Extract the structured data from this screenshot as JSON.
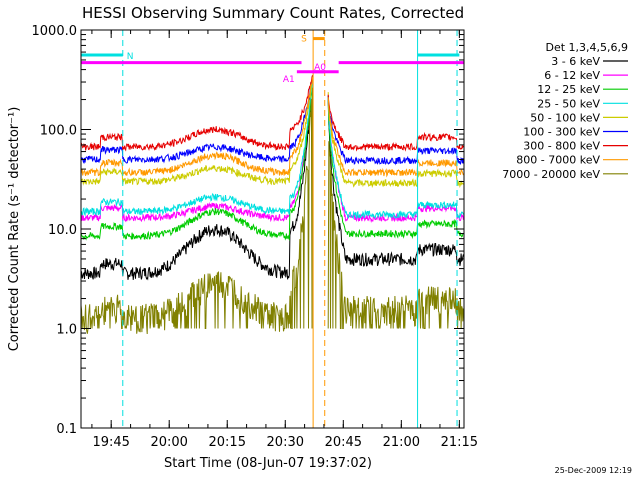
{
  "chart_data": {
    "type": "line",
    "title": "HESSI Observing Summary Count Rates, Corrected",
    "xlabel": "Start Time (08-Jun-07 19:37:02)",
    "ylabel": "Corrected Count Rate (s⁻¹ detector⁻¹)",
    "yscale": "log",
    "ylim": [
      0.1,
      1000
    ],
    "xlim_minutes": [
      19.62,
      21.27
    ],
    "x_ticks": [
      {
        "t": 19.75,
        "label": "19:45"
      },
      {
        "t": 20.0,
        "label": "20:00"
      },
      {
        "t": 20.25,
        "label": "20:15"
      },
      {
        "t": 20.5,
        "label": "20:30"
      },
      {
        "t": 20.75,
        "label": "20:45"
      },
      {
        "t": 21.0,
        "label": "21:00"
      },
      {
        "t": 21.25,
        "label": "21:15"
      }
    ],
    "y_ticks": [
      {
        "v": 0.1,
        "label": "0.1"
      },
      {
        "v": 1,
        "label": "1.0"
      },
      {
        "v": 10,
        "label": "10.0"
      },
      {
        "v": 100,
        "label": "100.0"
      },
      {
        "v": 1000,
        "label": "1000.0"
      }
    ],
    "legend": {
      "header": "Det 1,3,4,5,6,9",
      "position": "right"
    },
    "series": [
      {
        "name": "3 - 6 keV",
        "color": "#000000",
        "baseline": 3.6,
        "hump": 10,
        "peak": 380,
        "post": 5
      },
      {
        "name": "6 - 12 keV",
        "color": "#ff00ff",
        "baseline": 13,
        "hump": 17,
        "peak": 380,
        "post": 13
      },
      {
        "name": "12 - 25 keV",
        "color": "#00cc00",
        "baseline": 8.5,
        "hump": 15,
        "peak": 380,
        "post": 9
      },
      {
        "name": "25 - 50 keV",
        "color": "#00e0e0",
        "baseline": 15,
        "hump": 21,
        "peak": 380,
        "post": 14
      },
      {
        "name": "50 - 100 keV",
        "color": "#cccc00",
        "baseline": 30,
        "hump": 41,
        "peak": 380,
        "post": 29
      },
      {
        "name": "100 - 300 keV",
        "color": "#0000ff",
        "baseline": 50,
        "hump": 67,
        "peak": 380,
        "post": 49
      },
      {
        "name": "300 - 800 keV",
        "color": "#e60000",
        "baseline": 67,
        "hump": 100,
        "peak": 380,
        "post": 67
      },
      {
        "name": "800 - 7000 keV",
        "color": "#ff9900",
        "baseline": 37,
        "hump": 55,
        "peak": 380,
        "post": 37
      },
      {
        "name": "7000 - 20000 keV",
        "color": "#808000",
        "baseline": 1.3,
        "hump": 2.8,
        "peak": 380,
        "post": 1.6
      }
    ],
    "spans": [
      {
        "label": "N",
        "color": "#00e0e0",
        "start": 19.62,
        "end": 19.8,
        "level": 560
      },
      {
        "label": "N",
        "color": "#00e0e0",
        "start": 21.07,
        "end": 21.25,
        "level": 560
      },
      {
        "label": "",
        "color": "#ff00ff",
        "start": 19.62,
        "end": 20.57,
        "level": 470
      },
      {
        "label": "",
        "color": "#ff00ff",
        "start": 20.73,
        "end": 21.27,
        "level": 470
      },
      {
        "label": "S",
        "color": "#ff9900",
        "start": 20.62,
        "end": 20.67,
        "level": 820
      },
      {
        "label": "A0",
        "color": "#ff00ff",
        "start": 20.62,
        "end": 20.67,
        "level": 380
      },
      {
        "label": "A1",
        "color": "#ff00ff",
        "start": 20.55,
        "end": 20.73,
        "level": 380
      }
    ],
    "gap_minutes": [
      [
        19.705,
        19.8
      ],
      [
        21.07,
        21.24
      ]
    ],
    "vertical_lines": [
      {
        "t": 19.62,
        "color": "#00e0e0",
        "dash": false
      },
      {
        "t": 19.8,
        "color": "#00e0e0",
        "dash": true
      },
      {
        "t": 21.07,
        "color": "#00e0e0",
        "dash": false
      },
      {
        "t": 21.24,
        "color": "#00e0e0",
        "dash": true
      },
      {
        "t": 20.62,
        "color": "#ff9900",
        "dash": false
      },
      {
        "t": 20.67,
        "color": "#ff9900",
        "dash": true
      }
    ]
  },
  "footer": {
    "date_stamp": "25-Dec-2009 12:19"
  }
}
